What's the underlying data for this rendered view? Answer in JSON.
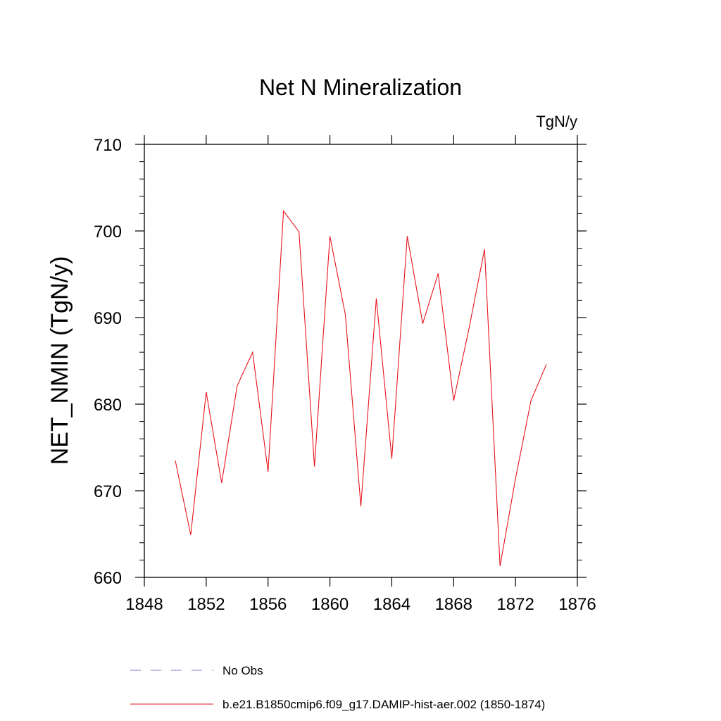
{
  "chart_data": {
    "type": "line",
    "title": "Net N Mineralization",
    "units_label": "TgN/y",
    "ylabel": "NET_NMIN  (TgN/y)",
    "xlabel": "",
    "xlim": [
      1848,
      1876
    ],
    "ylim": [
      660,
      710
    ],
    "x_ticks": [
      1848,
      1852,
      1856,
      1860,
      1864,
      1868,
      1872,
      1876
    ],
    "y_ticks": [
      660,
      670,
      680,
      690,
      700,
      710
    ],
    "grid": false,
    "legend_position": "bottom",
    "series": [
      {
        "name": "b.e21.B1850cmip6.f09_g17.DAMIP-hist-aer.002 (1850-1874)",
        "color": "#e8141c",
        "style": "solid",
        "x": [
          1850,
          1851,
          1852,
          1853,
          1854,
          1855,
          1856,
          1857,
          1858,
          1859,
          1860,
          1861,
          1862,
          1863,
          1864,
          1865,
          1866,
          1867,
          1868,
          1869,
          1870,
          1871,
          1872,
          1873,
          1874
        ],
        "y": [
          673.5,
          664.9,
          681.4,
          670.9,
          682.1,
          686.0,
          672.2,
          702.3,
          699.9,
          672.8,
          699.4,
          690.3,
          668.2,
          692.2,
          673.7,
          699.4,
          689.3,
          695.1,
          680.4,
          688.8,
          697.9,
          661.3,
          671.4,
          680.4,
          684.6
        ]
      }
    ],
    "legend": [
      {
        "label": "No Obs",
        "color": "#7b7bd6",
        "style": "dashed"
      },
      {
        "label": "b.e21.B1850cmip6.f09_g17.DAMIP-hist-aer.002 (1850-1874)",
        "color": "#e8141c",
        "style": "solid"
      }
    ]
  }
}
